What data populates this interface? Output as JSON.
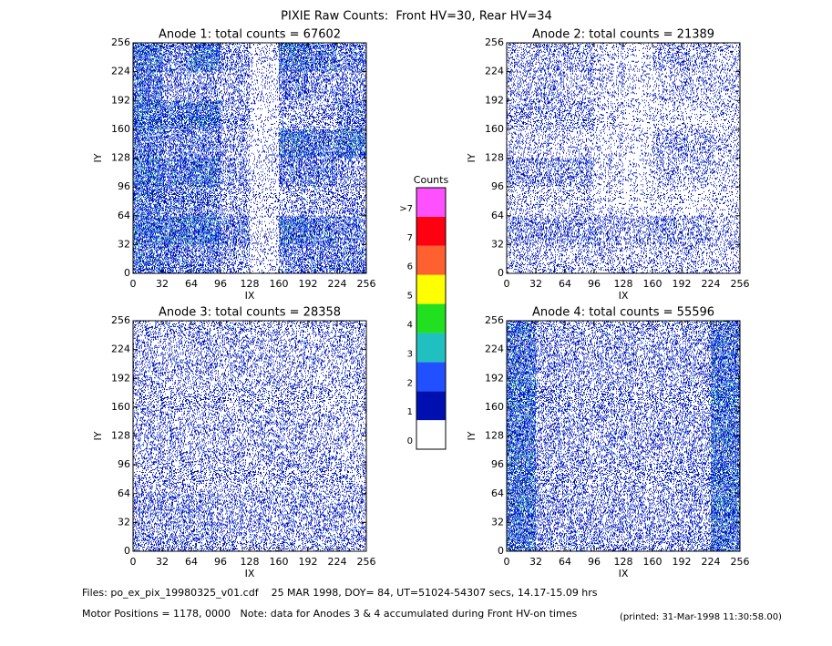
{
  "title": "PIXIE Raw Counts:  Front HV=30, Rear HV=34",
  "chart_data": [
    {
      "type": "heatmap",
      "title": "Anode 1: total counts = 67602",
      "xlabel": "IX",
      "ylabel": "IY",
      "xlim": [
        0,
        256
      ],
      "ylim": [
        0,
        256
      ],
      "xticks": [
        0,
        32,
        64,
        96,
        128,
        160,
        192,
        224,
        256
      ],
      "yticks": [
        0,
        32,
        64,
        96,
        128,
        160,
        192,
        224,
        256
      ],
      "values": [
        [
          2,
          1.5,
          1.5,
          1,
          0.3,
          1.5,
          1.5,
          1.5
        ],
        [
          2.5,
          2.5,
          2.5,
          1.5,
          0.3,
          2.5,
          2,
          1.5
        ],
        [
          2,
          1.5,
          1.5,
          0.8,
          0.3,
          0.8,
          0.8,
          1
        ],
        [
          2.5,
          2,
          2.5,
          1,
          0.3,
          1.5,
          1.5,
          1
        ],
        [
          2,
          1.5,
          1.5,
          0.8,
          0.3,
          2.5,
          2,
          2.5
        ],
        [
          2.5,
          2,
          2.5,
          1,
          0.3,
          0.8,
          0.8,
          1.5
        ],
        [
          2,
          1,
          1,
          0.8,
          0.3,
          1.5,
          1,
          1
        ],
        [
          2.5,
          1.5,
          2.5,
          1,
          0.3,
          2.5,
          2,
          1.5
        ]
      ]
    },
    {
      "type": "heatmap",
      "title": "Anode 2: total counts = 21389",
      "xlabel": "IX",
      "ylabel": "IY",
      "xlim": [
        0,
        256
      ],
      "ylim": [
        0,
        256
      ],
      "xticks": [
        0,
        32,
        64,
        96,
        128,
        160,
        192,
        224,
        256
      ],
      "yticks": [
        0,
        32,
        64,
        96,
        128,
        160,
        192,
        224,
        256
      ],
      "values": [
        [
          0.6,
          0.6,
          0.6,
          0.5,
          0.5,
          0.6,
          0.6,
          0.5
        ],
        [
          1,
          1,
          1,
          0.8,
          0.8,
          1,
          0.8,
          0.5
        ],
        [
          0.5,
          0.5,
          0.5,
          0.3,
          0.3,
          0.3,
          0.3,
          0.3
        ],
        [
          1,
          1,
          1,
          0.4,
          0.3,
          0.6,
          0.6,
          0.4
        ],
        [
          0.5,
          0.5,
          0.4,
          0.3,
          0.3,
          0.8,
          0.8,
          0.5
        ],
        [
          0.8,
          0.8,
          0.8,
          0.4,
          0.3,
          0.3,
          0.4,
          0.4
        ],
        [
          0.6,
          0.8,
          0.5,
          0.4,
          0.3,
          0.5,
          0.6,
          0.5
        ],
        [
          0.6,
          0.8,
          0.8,
          0.4,
          0.3,
          0.8,
          0.8,
          0.5
        ]
      ]
    },
    {
      "type": "heatmap",
      "title": "Anode 3: total counts = 28358",
      "xlabel": "IX",
      "ylabel": "IY",
      "xlim": [
        0,
        256
      ],
      "ylim": [
        0,
        256
      ],
      "xticks": [
        0,
        32,
        64,
        96,
        128,
        160,
        192,
        224,
        256
      ],
      "yticks": [
        0,
        32,
        64,
        96,
        128,
        160,
        192,
        224,
        256
      ],
      "values": [
        [
          1,
          1,
          1,
          0.8,
          0.8,
          0.8,
          0.8,
          0.8
        ],
        [
          1,
          1,
          0.9,
          0.8,
          0.8,
          0.8,
          0.8,
          0.8
        ],
        [
          0.7,
          0.7,
          0.7,
          0.7,
          0.7,
          0.7,
          0.7,
          0.7
        ],
        [
          0.7,
          0.7,
          0.7,
          0.7,
          0.7,
          0.7,
          0.7,
          0.6
        ],
        [
          0.7,
          0.7,
          0.7,
          0.7,
          0.7,
          0.7,
          0.6,
          0.6
        ],
        [
          0.7,
          0.7,
          0.7,
          0.7,
          0.6,
          0.7,
          0.6,
          0.6
        ],
        [
          0.7,
          0.7,
          0.7,
          0.7,
          0.6,
          0.6,
          0.6,
          0.6
        ],
        [
          0.7,
          0.7,
          0.8,
          0.7,
          0.6,
          0.6,
          0.7,
          0.7
        ]
      ]
    },
    {
      "type": "heatmap",
      "title": "Anode 4: total counts = 55596",
      "xlabel": "IX",
      "ylabel": "IY",
      "xlim": [
        0,
        256
      ],
      "ylim": [
        0,
        256
      ],
      "xticks": [
        0,
        32,
        64,
        96,
        128,
        160,
        192,
        224,
        256
      ],
      "yticks": [
        0,
        32,
        64,
        96,
        128,
        160,
        192,
        224,
        256
      ],
      "values": [
        [
          2.5,
          1,
          1,
          0.9,
          0.9,
          0.9,
          1,
          2.5
        ],
        [
          2.5,
          1,
          0.9,
          0.8,
          0.8,
          0.8,
          0.9,
          2.5
        ],
        [
          2.5,
          0.9,
          0.8,
          0.8,
          0.8,
          0.8,
          0.9,
          2.5
        ],
        [
          2.5,
          0.9,
          0.8,
          0.8,
          0.8,
          0.8,
          0.9,
          2.5
        ],
        [
          2.5,
          0.9,
          0.8,
          0.8,
          0.8,
          0.8,
          0.9,
          2.5
        ],
        [
          2.5,
          0.9,
          0.8,
          0.8,
          0.8,
          0.8,
          0.9,
          2.5
        ],
        [
          2.3,
          0.9,
          0.8,
          0.8,
          0.8,
          0.8,
          0.9,
          2.3
        ],
        [
          2.3,
          0.9,
          0.8,
          0.8,
          0.8,
          0.8,
          0.9,
          2.3
        ]
      ]
    }
  ],
  "colorbar": {
    "title": "Counts",
    "labels": [
      "0",
      "1",
      "2",
      "3",
      "4",
      "5",
      "6",
      "7",
      ">7"
    ],
    "colors": [
      "#ffffff",
      "#0010b0",
      "#2050ff",
      "#20c0c0",
      "#20e020",
      "#ffff00",
      "#ff6030",
      "#ff0010",
      "#ff50ff"
    ]
  },
  "footer": {
    "files": "Files: po_ex_pix_19980325_v01.cdf    25 MAR 1998, DOY= 84, UT=51024-54307 secs, 14.17-15.09 hrs",
    "motor": "Motor Positions = 1178, 0000   Note: data for Anodes 3 & 4 accumulated during Front HV-on times",
    "printed": "(printed: 31-Mar-1998 11:30:58.00)"
  }
}
